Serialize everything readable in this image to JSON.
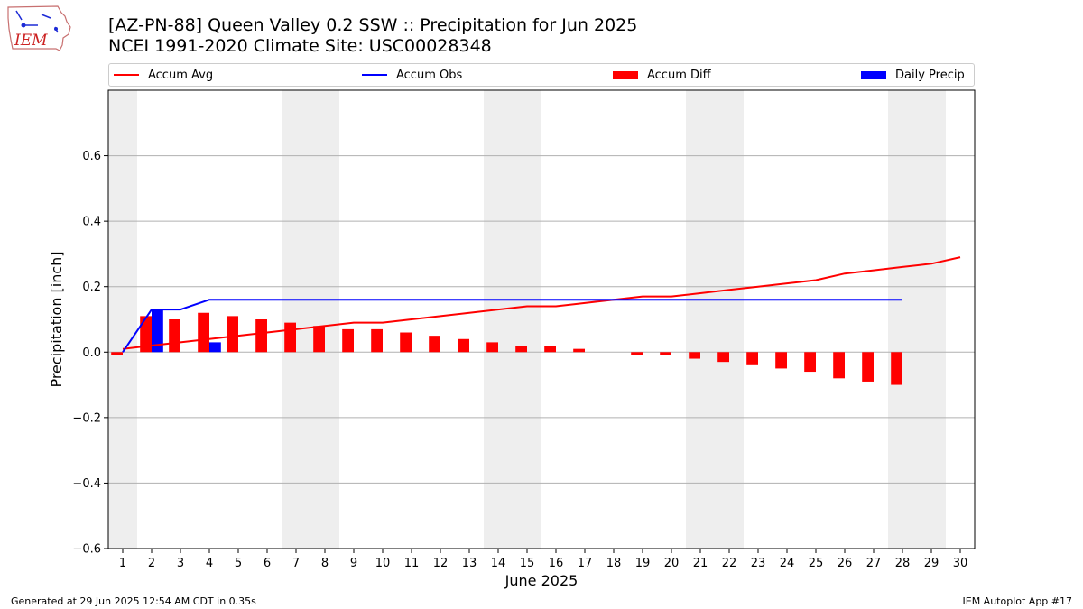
{
  "logo": {
    "text": "IEM"
  },
  "footer": {
    "generated": "Generated at 29 Jun 2025 12:54 AM CDT in 0.35s",
    "app": "IEM Autoplot App #17"
  },
  "colors": {
    "avg": "#ff0000",
    "obs": "#0000ff",
    "diff": "#ff0000",
    "daily": "#0000ff",
    "weekend_shade": "#eeeeee",
    "grid": "#b0b0b0"
  },
  "chart_data": {
    "type": "bar",
    "title": "[AZ-PN-88] Queen Valley 0.2 SSW :: Precipitation for Jun 2025",
    "subtitle": "NCEI 1991-2020 Climate Site: USC00028348",
    "xlabel": "June 2025",
    "ylabel": "Precipitation [inch]",
    "xlim": [
      0.5,
      30.5
    ],
    "ylim": [
      -0.6,
      0.8
    ],
    "yticks": [
      -0.6,
      -0.4,
      -0.2,
      0.0,
      0.2,
      0.4,
      0.6
    ],
    "ytick_labels": [
      "−0.6",
      "−0.4",
      "−0.2",
      "0.0",
      "0.2",
      "0.4",
      "0.6"
    ],
    "days": [
      1,
      2,
      3,
      4,
      5,
      6,
      7,
      8,
      9,
      10,
      11,
      12,
      13,
      14,
      15,
      16,
      17,
      18,
      19,
      20,
      21,
      22,
      23,
      24,
      25,
      26,
      27,
      28,
      29,
      30
    ],
    "grid": "horizontal",
    "legend_position": "top",
    "legend": [
      "Accum Avg",
      "Accum Obs",
      "Accum Diff",
      "Daily Precip"
    ],
    "weekend_shading": [
      [
        0.5,
        1.5
      ],
      [
        6.5,
        8.5
      ],
      [
        13.5,
        15.5
      ],
      [
        20.5,
        22.5
      ],
      [
        27.5,
        29.5
      ]
    ],
    "series": [
      {
        "name": "Accum Avg",
        "type": "line",
        "x": [
          1,
          2,
          3,
          4,
          5,
          6,
          7,
          8,
          9,
          10,
          11,
          12,
          13,
          14,
          15,
          16,
          17,
          18,
          19,
          20,
          21,
          22,
          23,
          24,
          25,
          26,
          27,
          28,
          29,
          30
        ],
        "values": [
          0.01,
          0.02,
          0.03,
          0.04,
          0.05,
          0.06,
          0.07,
          0.08,
          0.09,
          0.09,
          0.1,
          0.11,
          0.12,
          0.13,
          0.14,
          0.14,
          0.15,
          0.16,
          0.17,
          0.17,
          0.18,
          0.19,
          0.2,
          0.21,
          0.22,
          0.24,
          0.25,
          0.26,
          0.27,
          0.29
        ]
      },
      {
        "name": "Accum Obs",
        "type": "line",
        "x": [
          1,
          2,
          3,
          4,
          5,
          6,
          7,
          8,
          9,
          10,
          11,
          12,
          13,
          14,
          15,
          16,
          17,
          18,
          19,
          20,
          21,
          22,
          23,
          24,
          25,
          26,
          27,
          28
        ],
        "values": [
          0.0,
          0.13,
          0.13,
          0.16,
          0.16,
          0.16,
          0.16,
          0.16,
          0.16,
          0.16,
          0.16,
          0.16,
          0.16,
          0.16,
          0.16,
          0.16,
          0.16,
          0.16,
          0.16,
          0.16,
          0.16,
          0.16,
          0.16,
          0.16,
          0.16,
          0.16,
          0.16,
          0.16
        ]
      },
      {
        "name": "Accum Diff",
        "type": "bar",
        "x": [
          1,
          2,
          3,
          4,
          5,
          6,
          7,
          8,
          9,
          10,
          11,
          12,
          13,
          14,
          15,
          16,
          17,
          18,
          19,
          20,
          21,
          22,
          23,
          24,
          25,
          26,
          27,
          28
        ],
        "values": [
          -0.01,
          0.11,
          0.1,
          0.12,
          0.11,
          0.1,
          0.09,
          0.08,
          0.07,
          0.07,
          0.06,
          0.05,
          0.04,
          0.03,
          0.02,
          0.02,
          0.01,
          0.0,
          -0.01,
          -0.01,
          -0.02,
          -0.03,
          -0.04,
          -0.05,
          -0.06,
          -0.08,
          -0.09,
          -0.1
        ]
      },
      {
        "name": "Daily Precip",
        "type": "bar",
        "x": [
          2,
          4
        ],
        "values": [
          0.13,
          0.03
        ]
      }
    ]
  }
}
